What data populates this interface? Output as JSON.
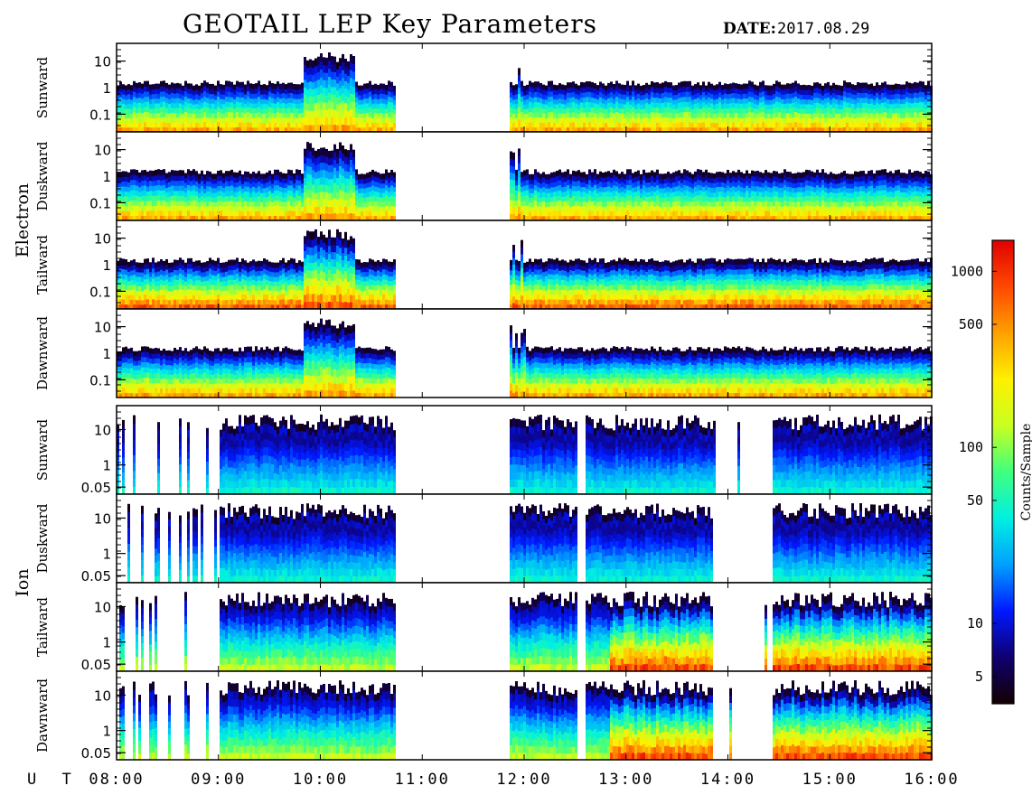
{
  "header": {
    "title": "GEOTAIL LEP Key Parameters",
    "date_label": "DATE:",
    "date_value": "2017.08.29"
  },
  "chart_data": {
    "type": "heatmap",
    "title": "GEOTAIL LEP Key Parameters",
    "date": "2017.08.29",
    "x_axis": {
      "label": "U T",
      "range": [
        "08:00",
        "16:00"
      ],
      "ticks": [
        "08:00",
        "09:00",
        "10:00",
        "11:00",
        "12:00",
        "13:00",
        "14:00",
        "15:00",
        "16:00"
      ]
    },
    "groups": [
      {
        "name": "Electron",
        "y_ticks": [
          "10",
          "1",
          "0.1"
        ],
        "panels": [
          "Sunward",
          "Duskward",
          "Tailward",
          "Dawnward"
        ],
        "data_gaps": [
          [
            "10:43",
            "11:50"
          ]
        ]
      },
      {
        "name": "Ion",
        "y_ticks": [
          "10",
          "1",
          "0.05"
        ],
        "panels": [
          "Sunward",
          "Duskward",
          "Tailward",
          "Dawnward"
        ],
        "data_gaps": [
          [
            "10:43",
            "11:50"
          ]
        ]
      }
    ],
    "colorbar": {
      "label": "Counts/Sample",
      "scale": "log",
      "range": [
        3.5,
        1500
      ],
      "ticks": [
        "1000",
        "500",
        "100",
        "50",
        "10",
        "5"
      ],
      "tick_values": [
        1000,
        500,
        100,
        50,
        10,
        5
      ],
      "colormap": [
        "#120000",
        "#100070",
        "#0018ff",
        "#00a0ff",
        "#00f0e0",
        "#40ff80",
        "#c8ff20",
        "#fff000",
        "#ffa000",
        "#ff4800",
        "#e00000"
      ]
    }
  }
}
